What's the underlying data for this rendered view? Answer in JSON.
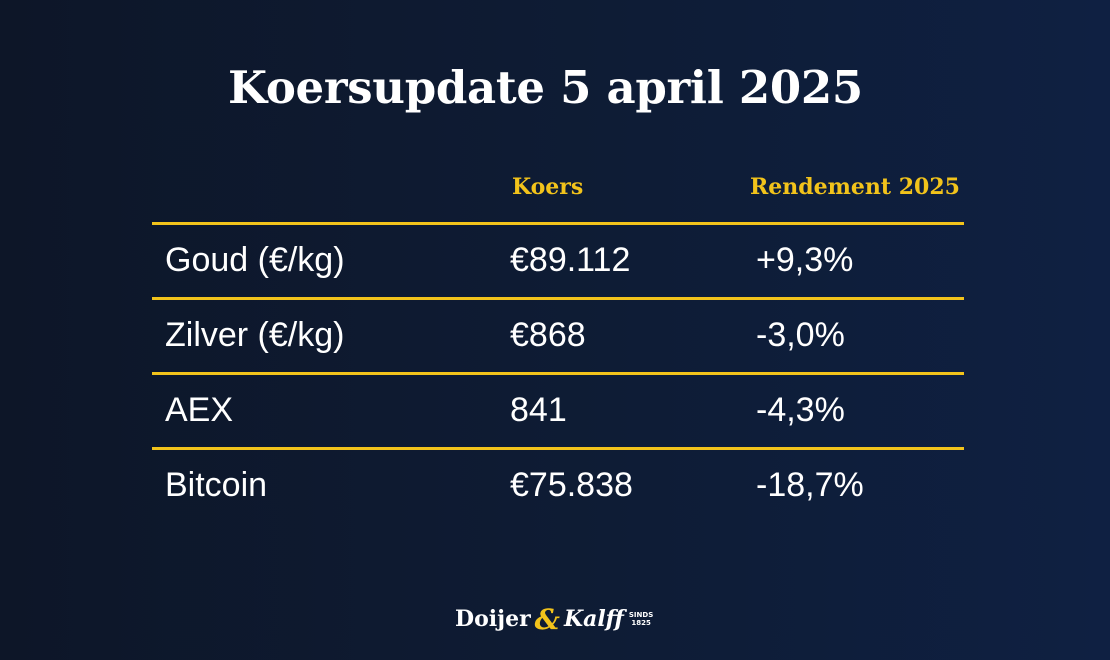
{
  "title": "Koersupdate 5 april 2025",
  "table": {
    "headers": [
      "",
      "Koers",
      "Rendement 2025"
    ],
    "rows": [
      {
        "name": "Goud (€/kg)",
        "koers": "€89.112",
        "rendement": "+9,3%"
      },
      {
        "name": "Zilver (€/kg)",
        "koers": "€868",
        "rendement": "-3,0%"
      },
      {
        "name": "AEX",
        "koers": "841",
        "rendement": "-4,3%"
      },
      {
        "name": "Bitcoin",
        "koers": "€75.838",
        "rendement": "-18,7%"
      }
    ]
  },
  "logo": {
    "part1": "Doijer",
    "ampersand": "&",
    "part2": "Kalff",
    "sinds": "SINDS",
    "year": "1825"
  },
  "colors": {
    "background": "#0e1b33",
    "accent": "#f2c31b",
    "text": "#ffffff"
  }
}
